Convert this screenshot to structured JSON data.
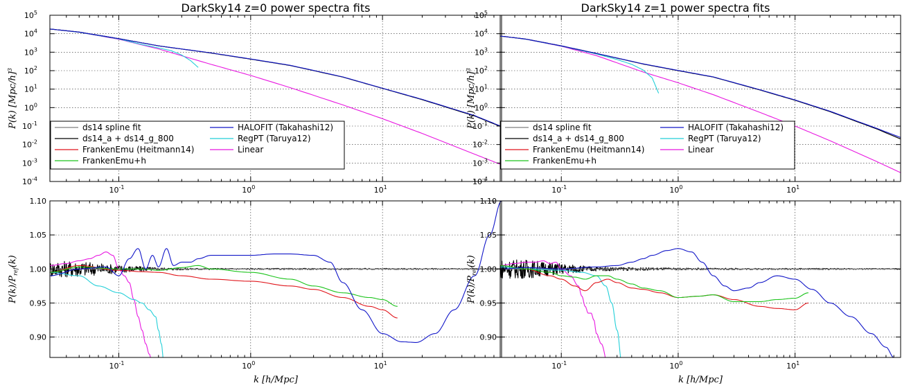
{
  "colors": {
    "ds14_spline": "#7f7f7f",
    "ds14_a": "#000000",
    "franken": "#e0141a",
    "frankenh": "#19c319",
    "halofit": "#1116c8",
    "regpt": "#22cfd8",
    "linear": "#e817e0"
  },
  "chart_data": [
    {
      "id": "z0_power",
      "type": "line",
      "title": "DarkSky14 z=0 power spectra fits",
      "xlabel": "k [h/Mpc]",
      "ylabel": "P(k) [Mpc/h]^3",
      "xscale": "log",
      "yscale": "log",
      "xlim": [
        0.03,
        80
      ],
      "ylim": [
        0.0001,
        100000
      ],
      "grid": true,
      "legend_loc": "lower-left",
      "legend": [
        "ds14 spline fit",
        "ds14_a + ds14_g_800",
        "FrankenEmu (Heitmann14)",
        "FrankenEmu+h",
        "HALOFIT (Takahashi12)",
        "RegPT (Taruya12)",
        "Linear"
      ],
      "series": [
        {
          "key": "linear",
          "name": "Linear",
          "x": [
            0.03,
            0.05,
            0.1,
            0.2,
            0.5,
            1,
            2,
            5,
            10,
            20,
            50,
            80
          ],
          "y": [
            18000,
            12000,
            5000,
            1500,
            220,
            55,
            12,
            1.4,
            0.25,
            0.04,
            0.003,
            0.0008
          ]
        },
        {
          "key": "regpt",
          "name": "RegPT (Taruya12)",
          "x": [
            0.03,
            0.05,
            0.1,
            0.15,
            0.2,
            0.25,
            0.3,
            0.35,
            0.4
          ],
          "y": [
            18000,
            12000,
            5200,
            2600,
            1700,
            1200,
            700,
            350,
            150
          ]
        },
        {
          "key": "ds14_spline",
          "name": "ds14 spline fit",
          "x": [
            0.03,
            0.05,
            0.1,
            0.2,
            0.5,
            1,
            2,
            5,
            10,
            20,
            50,
            80
          ],
          "y": [
            18000,
            12300,
            5400,
            2200,
            900,
            420,
            190,
            45,
            11,
            2.7,
            0.35,
            0.09
          ]
        },
        {
          "key": "ds14_a",
          "name": "ds14_a + ds14_g_800",
          "x": [
            0.03,
            0.05,
            0.1,
            0.2,
            0.5,
            1,
            2,
            5,
            10,
            20,
            50,
            80
          ],
          "y": [
            18000,
            12300,
            5400,
            2200,
            900,
            420,
            190,
            45,
            11,
            2.7,
            0.35,
            0.09
          ]
        },
        {
          "key": "halofit",
          "name": "HALOFIT (Takahashi12)",
          "x": [
            0.03,
            0.05,
            0.1,
            0.2,
            0.5,
            1,
            2,
            5,
            10,
            20,
            50,
            80
          ],
          "y": [
            18000,
            12300,
            5400,
            2200,
            920,
            430,
            195,
            46,
            11.2,
            2.8,
            0.37,
            0.095
          ]
        }
      ]
    },
    {
      "id": "z0_ratio",
      "type": "line",
      "title": "",
      "xlabel": "k [h/Mpc]",
      "ylabel": "P(k)/P_ref(k)",
      "xscale": "log",
      "yscale": "linear",
      "xlim": [
        0.03,
        80
      ],
      "ylim": [
        0.87,
        1.1
      ],
      "yticks": [
        "0.90",
        "0.95",
        "1.00",
        "1.05",
        "1.10"
      ],
      "grid": true,
      "series": [
        {
          "key": "ds14_a",
          "name": "ds14_a + ds14_g_800",
          "noise": true,
          "x": [
            0.03,
            0.05,
            0.1,
            0.2,
            0.5,
            1,
            2,
            5,
            10,
            20,
            50,
            80
          ],
          "y": [
            1,
            1,
            1,
            1,
            1,
            1,
            1,
            1,
            1,
            1,
            1,
            1
          ],
          "amp": [
            0.012,
            0.012,
            0.006,
            0.002,
            0.001,
            0.001,
            0.001,
            0.001,
            0.001,
            0.001,
            0.0008,
            0.0008
          ]
        },
        {
          "key": "ds14_spline",
          "name": "ds14 spline fit",
          "x": [
            0.03,
            80
          ],
          "y": [
            1,
            1
          ]
        },
        {
          "key": "linear",
          "name": "Linear",
          "x": [
            0.03,
            0.04,
            0.05,
            0.06,
            0.07,
            0.08,
            0.09,
            0.1,
            0.11,
            0.12,
            0.13,
            0.14,
            0.15,
            0.16,
            0.17,
            0.18
          ],
          "y": [
            1.005,
            1.008,
            1.012,
            1.015,
            1.02,
            1.025,
            1.02,
            1.0,
            0.99,
            0.98,
            0.955,
            0.93,
            0.91,
            0.89,
            0.875,
            0.86
          ]
        },
        {
          "key": "regpt",
          "name": "RegPT (Taruya12)",
          "x": [
            0.03,
            0.05,
            0.07,
            0.1,
            0.13,
            0.15,
            0.17,
            0.19,
            0.2,
            0.21,
            0.22
          ],
          "y": [
            0.995,
            0.99,
            0.975,
            0.965,
            0.955,
            0.95,
            0.94,
            0.93,
            0.91,
            0.89,
            0.86
          ]
        },
        {
          "key": "franken",
          "name": "FrankenEmu (Heitmann14)",
          "x": [
            0.03,
            0.05,
            0.1,
            0.15,
            0.2,
            0.3,
            0.5,
            1,
            2,
            3,
            5,
            8,
            10,
            13
          ],
          "y": [
            0.995,
            1.005,
            0.998,
            0.996,
            0.995,
            0.99,
            0.985,
            0.982,
            0.975,
            0.97,
            0.958,
            0.945,
            0.94,
            0.928
          ]
        },
        {
          "key": "frankenh",
          "name": "FrankenEmu+h",
          "x": [
            0.03,
            0.05,
            0.1,
            0.15,
            0.2,
            0.3,
            0.4,
            0.5,
            1,
            2,
            3,
            5,
            8,
            10,
            13
          ],
          "y": [
            0.995,
            1.003,
            1.0,
            1.0,
            0.998,
            1.002,
            1.005,
            1.0,
            0.995,
            0.985,
            0.975,
            0.965,
            0.958,
            0.955,
            0.945
          ]
        },
        {
          "key": "halofit",
          "name": "HALOFIT (Takahashi12)",
          "x": [
            0.03,
            0.05,
            0.08,
            0.1,
            0.12,
            0.14,
            0.16,
            0.18,
            0.2,
            0.23,
            0.26,
            0.3,
            0.35,
            0.4,
            0.5,
            0.6,
            0.8,
            1,
            1.5,
            2,
            3,
            4,
            5,
            7,
            10,
            14,
            18,
            25,
            35,
            50,
            65,
            80
          ],
          "y": [
            0.99,
            1.0,
            1.003,
            0.99,
            1.015,
            1.03,
            1.0,
            1.02,
            1.003,
            1.03,
            1.005,
            1.01,
            1.01,
            1.015,
            1.02,
            1.02,
            1.02,
            1.02,
            1.022,
            1.022,
            1.02,
            1.01,
            0.98,
            0.94,
            0.905,
            0.893,
            0.892,
            0.905,
            0.94,
            0.99,
            1.05,
            1.1
          ]
        }
      ]
    },
    {
      "id": "z1_power",
      "type": "line",
      "title": "DarkSky14 z=1 power spectra fits",
      "xlabel": "k [h/Mpc]",
      "ylabel": "P(k) [Mpc/h]^3",
      "xscale": "log",
      "yscale": "log",
      "xlim": [
        0.03,
        80
      ],
      "ylim": [
        0.0001,
        100000
      ],
      "grid": true,
      "legend_loc": "lower-left",
      "legend": [
        "ds14 spline fit",
        "ds14_a + ds14_g_800",
        "FrankenEmu (Heitmann14)",
        "FrankenEmu+h",
        "HALOFIT (Takahashi12)",
        "RegPT (Taruya12)",
        "Linear"
      ],
      "series": [
        {
          "key": "linear",
          "name": "Linear",
          "x": [
            0.03,
            0.05,
            0.1,
            0.2,
            0.5,
            1,
            2,
            5,
            10,
            20,
            50,
            80
          ],
          "y": [
            7500,
            5000,
            2100,
            650,
            85,
            22,
            5,
            0.55,
            0.1,
            0.016,
            0.0012,
            0.0003
          ]
        },
        {
          "key": "regpt",
          "name": "RegPT (Taruya12)",
          "x": [
            0.03,
            0.05,
            0.1,
            0.2,
            0.3,
            0.4,
            0.5,
            0.6,
            0.68
          ],
          "y": [
            7500,
            5000,
            2150,
            800,
            400,
            220,
            110,
            40,
            6
          ]
        },
        {
          "key": "ds14_spline",
          "name": "ds14 spline fit",
          "x": [
            0.03,
            0.05,
            0.1,
            0.2,
            0.5,
            1,
            2,
            5,
            10,
            20,
            50,
            80
          ],
          "y": [
            7500,
            5100,
            2200,
            850,
            230,
            100,
            45,
            9,
            2.5,
            0.6,
            0.07,
            0.02
          ]
        },
        {
          "key": "ds14_a",
          "name": "ds14_a + ds14_g_800",
          "x": [
            0.03,
            0.05,
            0.1,
            0.2,
            0.5,
            1,
            2,
            5,
            10,
            20,
            50,
            80
          ],
          "y": [
            7500,
            5100,
            2200,
            850,
            230,
            100,
            45,
            9,
            2.5,
            0.6,
            0.07,
            0.02
          ]
        },
        {
          "key": "halofit",
          "name": "HALOFIT (Takahashi12)",
          "x": [
            0.03,
            0.05,
            0.1,
            0.2,
            0.5,
            1,
            2,
            5,
            10,
            20,
            50,
            80
          ],
          "y": [
            7500,
            5100,
            2200,
            860,
            235,
            103,
            46,
            9.3,
            2.6,
            0.63,
            0.075,
            0.024
          ]
        }
      ]
    },
    {
      "id": "z1_ratio",
      "type": "line",
      "title": "",
      "xlabel": "k [h/Mpc]",
      "ylabel": "P(k)/P_ref(k)",
      "xscale": "log",
      "yscale": "linear",
      "xlim": [
        0.03,
        80
      ],
      "ylim": [
        0.87,
        1.1
      ],
      "yticks": [
        "0.90",
        "0.95",
        "1.00",
        "1.05",
        "1.10"
      ],
      "grid": true,
      "series": [
        {
          "key": "ds14_a",
          "name": "ds14_a + ds14_g_800",
          "noise": true,
          "x": [
            0.03,
            0.05,
            0.1,
            0.2,
            0.5,
            1,
            2,
            5,
            10,
            20,
            50,
            80
          ],
          "y": [
            1,
            1,
            1,
            1,
            1,
            1,
            1,
            1,
            1,
            1,
            1,
            1
          ],
          "amp": [
            0.014,
            0.014,
            0.008,
            0.003,
            0.002,
            0.0015,
            0.0012,
            0.001,
            0.001,
            0.001,
            0.0008,
            0.0008
          ]
        },
        {
          "key": "ds14_spline",
          "name": "ds14 spline fit",
          "x": [
            0.03,
            80
          ],
          "y": [
            1,
            1
          ]
        },
        {
          "key": "linear",
          "name": "Linear",
          "x": [
            0.03,
            0.04,
            0.05,
            0.06,
            0.07,
            0.08,
            0.09,
            0.1,
            0.12,
            0.14,
            0.15,
            0.16,
            0.17,
            0.18,
            0.19,
            0.2,
            0.22,
            0.25
          ],
          "y": [
            1.005,
            1.008,
            1.01,
            1.01,
            1.012,
            1.008,
            1.01,
            1.0,
            0.99,
            0.975,
            0.96,
            0.945,
            0.935,
            0.935,
            0.925,
            0.905,
            0.89,
            0.86
          ]
        },
        {
          "key": "regpt",
          "name": "RegPT (Taruya12)",
          "x": [
            0.03,
            0.05,
            0.1,
            0.15,
            0.2,
            0.24,
            0.27,
            0.3,
            0.33
          ],
          "y": [
            1.003,
            1.0,
            0.998,
            0.995,
            0.99,
            0.975,
            0.95,
            0.91,
            0.86
          ]
        },
        {
          "key": "franken",
          "name": "FrankenEmu (Heitmann14)",
          "x": [
            0.03,
            0.05,
            0.08,
            0.1,
            0.13,
            0.16,
            0.2,
            0.25,
            0.3,
            0.4,
            0.5,
            0.7,
            1,
            1.5,
            2,
            3,
            5,
            7,
            10,
            13
          ],
          "y": [
            1.005,
            1.0,
            0.99,
            0.985,
            0.975,
            0.968,
            0.98,
            0.985,
            0.98,
            0.972,
            0.97,
            0.965,
            0.958,
            0.96,
            0.962,
            0.955,
            0.945,
            0.942,
            0.94,
            0.95
          ]
        },
        {
          "key": "frankenh",
          "name": "FrankenEmu+h",
          "x": [
            0.03,
            0.05,
            0.08,
            0.1,
            0.13,
            0.16,
            0.2,
            0.25,
            0.3,
            0.4,
            0.5,
            0.7,
            1,
            1.5,
            2,
            3,
            5,
            7,
            10,
            13
          ],
          "y": [
            1.005,
            1.0,
            0.995,
            0.99,
            0.988,
            0.985,
            0.99,
            0.99,
            0.985,
            0.978,
            0.972,
            0.968,
            0.958,
            0.96,
            0.962,
            0.952,
            0.952,
            0.955,
            0.957,
            0.965
          ]
        },
        {
          "key": "halofit",
          "name": "HALOFIT (Takahashi12)",
          "x": [
            0.03,
            0.05,
            0.1,
            0.2,
            0.3,
            0.4,
            0.5,
            0.6,
            0.8,
            1,
            1.3,
            1.6,
            2,
            2.5,
            3,
            4,
            5,
            7,
            10,
            14,
            20,
            30,
            45,
            60,
            70
          ],
          "y": [
            1.0,
            1.002,
            1.0,
            1.003,
            1.005,
            1.01,
            1.015,
            1.02,
            1.027,
            1.03,
            1.025,
            1.01,
            0.99,
            0.975,
            0.968,
            0.972,
            0.98,
            0.99,
            0.985,
            0.97,
            0.95,
            0.93,
            0.905,
            0.885,
            0.87
          ]
        }
      ]
    }
  ]
}
